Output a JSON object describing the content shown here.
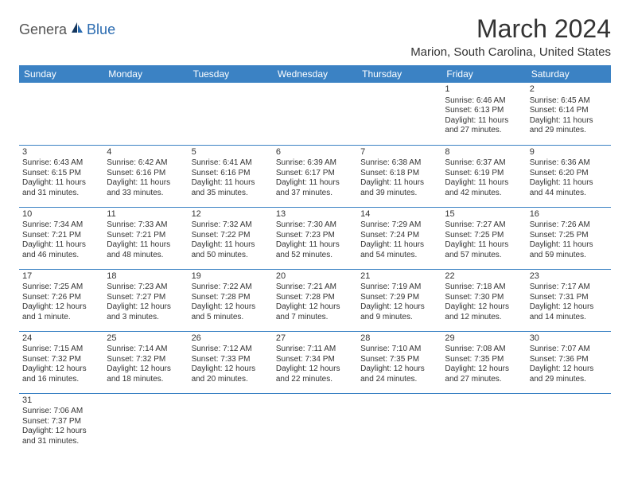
{
  "logo": {
    "part1": "Genera",
    "part2": "Blue"
  },
  "title": "March 2024",
  "location": "Marion, South Carolina, United States",
  "colors": {
    "header_bg": "#3b82c4",
    "header_text": "#ffffff",
    "border": "#3b82c4",
    "logo_gray": "#555555",
    "logo_blue": "#2a6bb0",
    "text": "#333333",
    "background": "#ffffff"
  },
  "weekdays": [
    "Sunday",
    "Monday",
    "Tuesday",
    "Wednesday",
    "Thursday",
    "Friday",
    "Saturday"
  ],
  "weeks": [
    [
      null,
      null,
      null,
      null,
      null,
      {
        "n": "1",
        "sr": "Sunrise: 6:46 AM",
        "ss": "Sunset: 6:13 PM",
        "d1": "Daylight: 11 hours",
        "d2": "and 27 minutes."
      },
      {
        "n": "2",
        "sr": "Sunrise: 6:45 AM",
        "ss": "Sunset: 6:14 PM",
        "d1": "Daylight: 11 hours",
        "d2": "and 29 minutes."
      }
    ],
    [
      {
        "n": "3",
        "sr": "Sunrise: 6:43 AM",
        "ss": "Sunset: 6:15 PM",
        "d1": "Daylight: 11 hours",
        "d2": "and 31 minutes."
      },
      {
        "n": "4",
        "sr": "Sunrise: 6:42 AM",
        "ss": "Sunset: 6:16 PM",
        "d1": "Daylight: 11 hours",
        "d2": "and 33 minutes."
      },
      {
        "n": "5",
        "sr": "Sunrise: 6:41 AM",
        "ss": "Sunset: 6:16 PM",
        "d1": "Daylight: 11 hours",
        "d2": "and 35 minutes."
      },
      {
        "n": "6",
        "sr": "Sunrise: 6:39 AM",
        "ss": "Sunset: 6:17 PM",
        "d1": "Daylight: 11 hours",
        "d2": "and 37 minutes."
      },
      {
        "n": "7",
        "sr": "Sunrise: 6:38 AM",
        "ss": "Sunset: 6:18 PM",
        "d1": "Daylight: 11 hours",
        "d2": "and 39 minutes."
      },
      {
        "n": "8",
        "sr": "Sunrise: 6:37 AM",
        "ss": "Sunset: 6:19 PM",
        "d1": "Daylight: 11 hours",
        "d2": "and 42 minutes."
      },
      {
        "n": "9",
        "sr": "Sunrise: 6:36 AM",
        "ss": "Sunset: 6:20 PM",
        "d1": "Daylight: 11 hours",
        "d2": "and 44 minutes."
      }
    ],
    [
      {
        "n": "10",
        "sr": "Sunrise: 7:34 AM",
        "ss": "Sunset: 7:21 PM",
        "d1": "Daylight: 11 hours",
        "d2": "and 46 minutes."
      },
      {
        "n": "11",
        "sr": "Sunrise: 7:33 AM",
        "ss": "Sunset: 7:21 PM",
        "d1": "Daylight: 11 hours",
        "d2": "and 48 minutes."
      },
      {
        "n": "12",
        "sr": "Sunrise: 7:32 AM",
        "ss": "Sunset: 7:22 PM",
        "d1": "Daylight: 11 hours",
        "d2": "and 50 minutes."
      },
      {
        "n": "13",
        "sr": "Sunrise: 7:30 AM",
        "ss": "Sunset: 7:23 PM",
        "d1": "Daylight: 11 hours",
        "d2": "and 52 minutes."
      },
      {
        "n": "14",
        "sr": "Sunrise: 7:29 AM",
        "ss": "Sunset: 7:24 PM",
        "d1": "Daylight: 11 hours",
        "d2": "and 54 minutes."
      },
      {
        "n": "15",
        "sr": "Sunrise: 7:27 AM",
        "ss": "Sunset: 7:25 PM",
        "d1": "Daylight: 11 hours",
        "d2": "and 57 minutes."
      },
      {
        "n": "16",
        "sr": "Sunrise: 7:26 AM",
        "ss": "Sunset: 7:25 PM",
        "d1": "Daylight: 11 hours",
        "d2": "and 59 minutes."
      }
    ],
    [
      {
        "n": "17",
        "sr": "Sunrise: 7:25 AM",
        "ss": "Sunset: 7:26 PM",
        "d1": "Daylight: 12 hours",
        "d2": "and 1 minute."
      },
      {
        "n": "18",
        "sr": "Sunrise: 7:23 AM",
        "ss": "Sunset: 7:27 PM",
        "d1": "Daylight: 12 hours",
        "d2": "and 3 minutes."
      },
      {
        "n": "19",
        "sr": "Sunrise: 7:22 AM",
        "ss": "Sunset: 7:28 PM",
        "d1": "Daylight: 12 hours",
        "d2": "and 5 minutes."
      },
      {
        "n": "20",
        "sr": "Sunrise: 7:21 AM",
        "ss": "Sunset: 7:28 PM",
        "d1": "Daylight: 12 hours",
        "d2": "and 7 minutes."
      },
      {
        "n": "21",
        "sr": "Sunrise: 7:19 AM",
        "ss": "Sunset: 7:29 PM",
        "d1": "Daylight: 12 hours",
        "d2": "and 9 minutes."
      },
      {
        "n": "22",
        "sr": "Sunrise: 7:18 AM",
        "ss": "Sunset: 7:30 PM",
        "d1": "Daylight: 12 hours",
        "d2": "and 12 minutes."
      },
      {
        "n": "23",
        "sr": "Sunrise: 7:17 AM",
        "ss": "Sunset: 7:31 PM",
        "d1": "Daylight: 12 hours",
        "d2": "and 14 minutes."
      }
    ],
    [
      {
        "n": "24",
        "sr": "Sunrise: 7:15 AM",
        "ss": "Sunset: 7:32 PM",
        "d1": "Daylight: 12 hours",
        "d2": "and 16 minutes."
      },
      {
        "n": "25",
        "sr": "Sunrise: 7:14 AM",
        "ss": "Sunset: 7:32 PM",
        "d1": "Daylight: 12 hours",
        "d2": "and 18 minutes."
      },
      {
        "n": "26",
        "sr": "Sunrise: 7:12 AM",
        "ss": "Sunset: 7:33 PM",
        "d1": "Daylight: 12 hours",
        "d2": "and 20 minutes."
      },
      {
        "n": "27",
        "sr": "Sunrise: 7:11 AM",
        "ss": "Sunset: 7:34 PM",
        "d1": "Daylight: 12 hours",
        "d2": "and 22 minutes."
      },
      {
        "n": "28",
        "sr": "Sunrise: 7:10 AM",
        "ss": "Sunset: 7:35 PM",
        "d1": "Daylight: 12 hours",
        "d2": "and 24 minutes."
      },
      {
        "n": "29",
        "sr": "Sunrise: 7:08 AM",
        "ss": "Sunset: 7:35 PM",
        "d1": "Daylight: 12 hours",
        "d2": "and 27 minutes."
      },
      {
        "n": "30",
        "sr": "Sunrise: 7:07 AM",
        "ss": "Sunset: 7:36 PM",
        "d1": "Daylight: 12 hours",
        "d2": "and 29 minutes."
      }
    ],
    [
      {
        "n": "31",
        "sr": "Sunrise: 7:06 AM",
        "ss": "Sunset: 7:37 PM",
        "d1": "Daylight: 12 hours",
        "d2": "and 31 minutes."
      },
      null,
      null,
      null,
      null,
      null,
      null
    ]
  ]
}
